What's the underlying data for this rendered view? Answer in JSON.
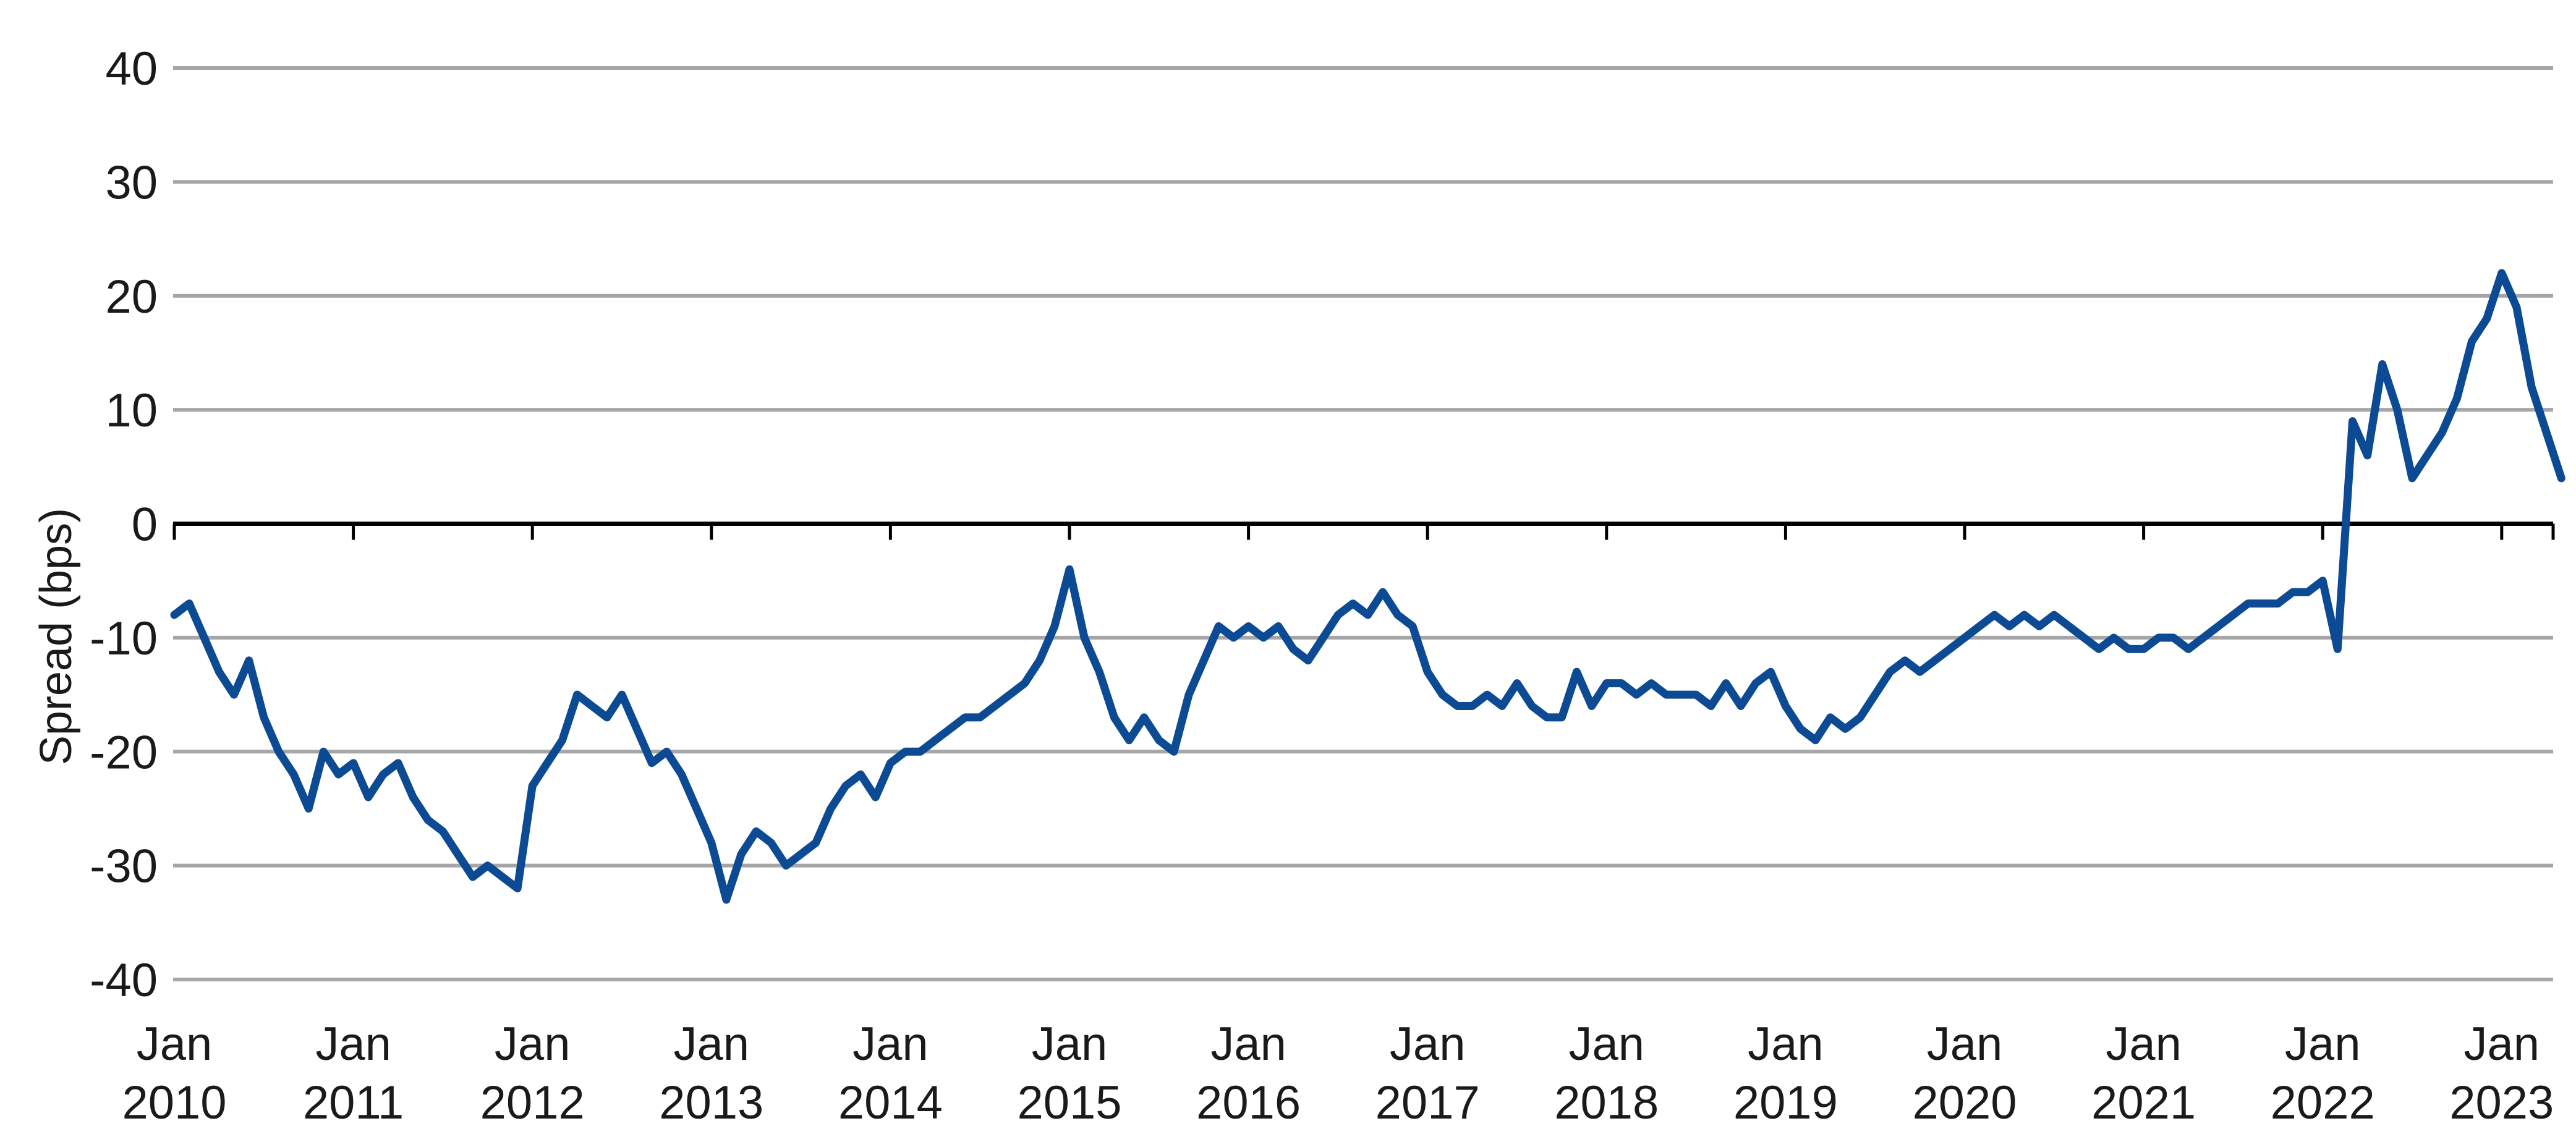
{
  "chart_data": {
    "type": "line",
    "title": "",
    "xlabel": "",
    "ylabel": "Spread (bps)",
    "ylim": [
      -40,
      40
    ],
    "yticks": [
      40,
      30,
      20,
      10,
      0,
      -10,
      -20,
      -30,
      -40
    ],
    "xlim": [
      "2010-01",
      "2023-05"
    ],
    "xticks": [
      {
        "line1": "Jan",
        "line2": "2010",
        "date": "2010-01"
      },
      {
        "line1": "Jan",
        "line2": "2011",
        "date": "2011-01"
      },
      {
        "line1": "Jan",
        "line2": "2012",
        "date": "2012-01"
      },
      {
        "line1": "Jan",
        "line2": "2013",
        "date": "2013-01"
      },
      {
        "line1": "Jan",
        "line2": "2014",
        "date": "2014-01"
      },
      {
        "line1": "Jan",
        "line2": "2015",
        "date": "2015-01"
      },
      {
        "line1": "Jan",
        "line2": "2016",
        "date": "2016-01"
      },
      {
        "line1": "Jan",
        "line2": "2017",
        "date": "2017-01"
      },
      {
        "line1": "Jan",
        "line2": "2018",
        "date": "2018-01"
      },
      {
        "line1": "Jan",
        "line2": "2019",
        "date": "2019-01"
      },
      {
        "line1": "Jan",
        "line2": "2020",
        "date": "2020-01"
      },
      {
        "line1": "Jan",
        "line2": "2021",
        "date": "2021-01"
      },
      {
        "line1": "Jan",
        "line2": "2022",
        "date": "2022-01"
      },
      {
        "line1": "Jan",
        "line2": "2023",
        "date": "2023-01"
      }
    ],
    "grid": true,
    "legend": "none",
    "colors": {
      "series": "#0c4a94",
      "grid": "#a6a6a6",
      "zero_line": "#000000"
    },
    "series": [
      {
        "points": [
          [
            "2010-01",
            -8
          ],
          [
            "2010-02",
            -7
          ],
          [
            "2010-03",
            -10
          ],
          [
            "2010-04",
            -13
          ],
          [
            "2010-05",
            -15
          ],
          [
            "2010-06",
            -12
          ],
          [
            "2010-07",
            -17
          ],
          [
            "2010-08",
            -20
          ],
          [
            "2010-09",
            -22
          ],
          [
            "2010-10",
            -25
          ],
          [
            "2010-11",
            -20
          ],
          [
            "2010-12",
            -22
          ],
          [
            "2011-01",
            -21
          ],
          [
            "2011-02",
            -24
          ],
          [
            "2011-03",
            -22
          ],
          [
            "2011-04",
            -21
          ],
          [
            "2011-05",
            -24
          ],
          [
            "2011-06",
            -26
          ],
          [
            "2011-07",
            -27
          ],
          [
            "2011-08",
            -29
          ],
          [
            "2011-09",
            -31
          ],
          [
            "2011-10",
            -30
          ],
          [
            "2011-11",
            -31
          ],
          [
            "2011-12",
            -32
          ],
          [
            "2012-01",
            -23
          ],
          [
            "2012-02",
            -21
          ],
          [
            "2012-03",
            -19
          ],
          [
            "2012-04",
            -15
          ],
          [
            "2012-05",
            -16
          ],
          [
            "2012-06",
            -17
          ],
          [
            "2012-07",
            -15
          ],
          [
            "2012-08",
            -18
          ],
          [
            "2012-09",
            -21
          ],
          [
            "2012-10",
            -20
          ],
          [
            "2012-11",
            -22
          ],
          [
            "2012-12",
            -25
          ],
          [
            "2013-01",
            -28
          ],
          [
            "2013-02",
            -33
          ],
          [
            "2013-03",
            -29
          ],
          [
            "2013-04",
            -27
          ],
          [
            "2013-05",
            -28
          ],
          [
            "2013-06",
            -30
          ],
          [
            "2013-07",
            -29
          ],
          [
            "2013-08",
            -28
          ],
          [
            "2013-09",
            -25
          ],
          [
            "2013-10",
            -23
          ],
          [
            "2013-11",
            -22
          ],
          [
            "2013-12",
            -24
          ],
          [
            "2014-01",
            -21
          ],
          [
            "2014-02",
            -20
          ],
          [
            "2014-03",
            -20
          ],
          [
            "2014-04",
            -19
          ],
          [
            "2014-05",
            -18
          ],
          [
            "2014-06",
            -17
          ],
          [
            "2014-07",
            -17
          ],
          [
            "2014-08",
            -16
          ],
          [
            "2014-09",
            -15
          ],
          [
            "2014-10",
            -14
          ],
          [
            "2014-11",
            -12
          ],
          [
            "2014-12",
            -9
          ],
          [
            "2015-01",
            -4
          ],
          [
            "2015-02",
            -10
          ],
          [
            "2015-03",
            -13
          ],
          [
            "2015-04",
            -17
          ],
          [
            "2015-05",
            -19
          ],
          [
            "2015-06",
            -17
          ],
          [
            "2015-07",
            -19
          ],
          [
            "2015-08",
            -20
          ],
          [
            "2015-09",
            -15
          ],
          [
            "2015-10",
            -12
          ],
          [
            "2015-11",
            -9
          ],
          [
            "2015-12",
            -10
          ],
          [
            "2016-01",
            -9
          ],
          [
            "2016-02",
            -10
          ],
          [
            "2016-03",
            -9
          ],
          [
            "2016-04",
            -11
          ],
          [
            "2016-05",
            -12
          ],
          [
            "2016-06",
            -10
          ],
          [
            "2016-07",
            -8
          ],
          [
            "2016-08",
            -7
          ],
          [
            "2016-09",
            -8
          ],
          [
            "2016-10",
            -6
          ],
          [
            "2016-11",
            -8
          ],
          [
            "2016-12",
            -9
          ],
          [
            "2017-01",
            -13
          ],
          [
            "2017-02",
            -15
          ],
          [
            "2017-03",
            -16
          ],
          [
            "2017-04",
            -16
          ],
          [
            "2017-05",
            -15
          ],
          [
            "2017-06",
            -16
          ],
          [
            "2017-07",
            -14
          ],
          [
            "2017-08",
            -16
          ],
          [
            "2017-09",
            -17
          ],
          [
            "2017-10",
            -17
          ],
          [
            "2017-11",
            -13
          ],
          [
            "2017-12",
            -16
          ],
          [
            "2018-01",
            -14
          ],
          [
            "2018-02",
            -14
          ],
          [
            "2018-03",
            -15
          ],
          [
            "2018-04",
            -14
          ],
          [
            "2018-05",
            -15
          ],
          [
            "2018-06",
            -15
          ],
          [
            "2018-07",
            -15
          ],
          [
            "2018-08",
            -16
          ],
          [
            "2018-09",
            -14
          ],
          [
            "2018-10",
            -16
          ],
          [
            "2018-11",
            -14
          ],
          [
            "2018-12",
            -13
          ],
          [
            "2019-01",
            -16
          ],
          [
            "2019-02",
            -18
          ],
          [
            "2019-03",
            -19
          ],
          [
            "2019-04",
            -17
          ],
          [
            "2019-05",
            -18
          ],
          [
            "2019-06",
            -17
          ],
          [
            "2019-07",
            -15
          ],
          [
            "2019-08",
            -13
          ],
          [
            "2019-09",
            -12
          ],
          [
            "2019-10",
            -13
          ],
          [
            "2019-11",
            -12
          ],
          [
            "2019-12",
            -11
          ],
          [
            "2020-01",
            -10
          ],
          [
            "2020-02",
            -9
          ],
          [
            "2020-03",
            -8
          ],
          [
            "2020-04",
            -9
          ],
          [
            "2020-05",
            -8
          ],
          [
            "2020-06",
            -9
          ],
          [
            "2020-07",
            -8
          ],
          [
            "2020-08",
            -9
          ],
          [
            "2020-09",
            -10
          ],
          [
            "2020-10",
            -11
          ],
          [
            "2020-11",
            -10
          ],
          [
            "2020-12",
            -11
          ],
          [
            "2021-01",
            -11
          ],
          [
            "2021-02",
            -10
          ],
          [
            "2021-03",
            -10
          ],
          [
            "2021-04",
            -11
          ],
          [
            "2021-05",
            -10
          ],
          [
            "2021-06",
            -9
          ],
          [
            "2021-07",
            -8
          ],
          [
            "2021-08",
            -7
          ],
          [
            "2021-09",
            -7
          ],
          [
            "2021-10",
            -7
          ],
          [
            "2021-11",
            -6
          ],
          [
            "2021-12",
            -6
          ],
          [
            "2022-01",
            -5
          ],
          [
            "2022-02",
            -11
          ],
          [
            "2022-03",
            9
          ],
          [
            "2022-04",
            6
          ],
          [
            "2022-05",
            14
          ],
          [
            "2022-06",
            10
          ],
          [
            "2022-07",
            4
          ],
          [
            "2022-08",
            6
          ],
          [
            "2022-09",
            8
          ],
          [
            "2022-10",
            11
          ],
          [
            "2022-11",
            16
          ],
          [
            "2022-12",
            18
          ],
          [
            "2023-01",
            22
          ],
          [
            "2023-02",
            19
          ],
          [
            "2023-03",
            12
          ],
          [
            "2023-04",
            8
          ],
          [
            "2023-05",
            4
          ]
        ]
      }
    ]
  }
}
